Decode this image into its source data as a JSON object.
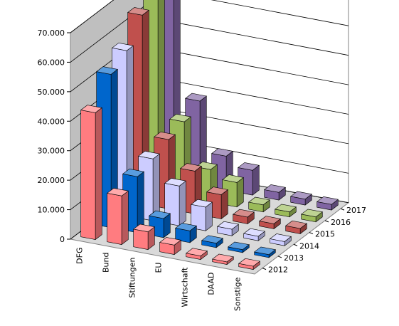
{
  "chart_data": {
    "type": "bar",
    "subtype": "3d-column-series-depth",
    "title": "",
    "xlabel": "",
    "ylabel": "",
    "ylim": [
      0,
      70000
    ],
    "y_ticks": [
      "0",
      "10.000",
      "20.000",
      "30.000",
      "40.000",
      "50.000",
      "60.000",
      "70.000"
    ],
    "grid": true,
    "legend": "none",
    "categories": [
      "DFG",
      "Bund",
      "Stiftungen",
      "EU",
      "Wirtschaft",
      "DAAD",
      "Sonstige"
    ],
    "series": [
      {
        "name": "2012",
        "color": "#FF7C80",
        "values": [
          43000,
          16500,
          6000,
          3200,
          1200,
          900,
          1100
        ]
      },
      {
        "name": "2013",
        "color": "#0066CC",
        "values": [
          52000,
          19000,
          6500,
          4000,
          1500,
          1000,
          1000
        ]
      },
      {
        "name": "2014",
        "color": "#CCCCFF",
        "values": [
          56000,
          21000,
          13500,
          8000,
          2200,
          1500,
          1400
        ]
      },
      {
        "name": "2015",
        "color": "#C0504D",
        "values": [
          64000,
          23500,
          14500,
          8200,
          2300,
          1700,
          1800
        ]
      },
      {
        "name": "2016",
        "color": "#9BBB59",
        "values": [
          66000,
          25500,
          11000,
          8300,
          2400,
          1700,
          1700
        ]
      },
      {
        "name": "2017",
        "color": "#8064A2",
        "values": [
          67000,
          28500,
          11500,
          8400,
          2600,
          2000,
          1900
        ]
      }
    ]
  }
}
